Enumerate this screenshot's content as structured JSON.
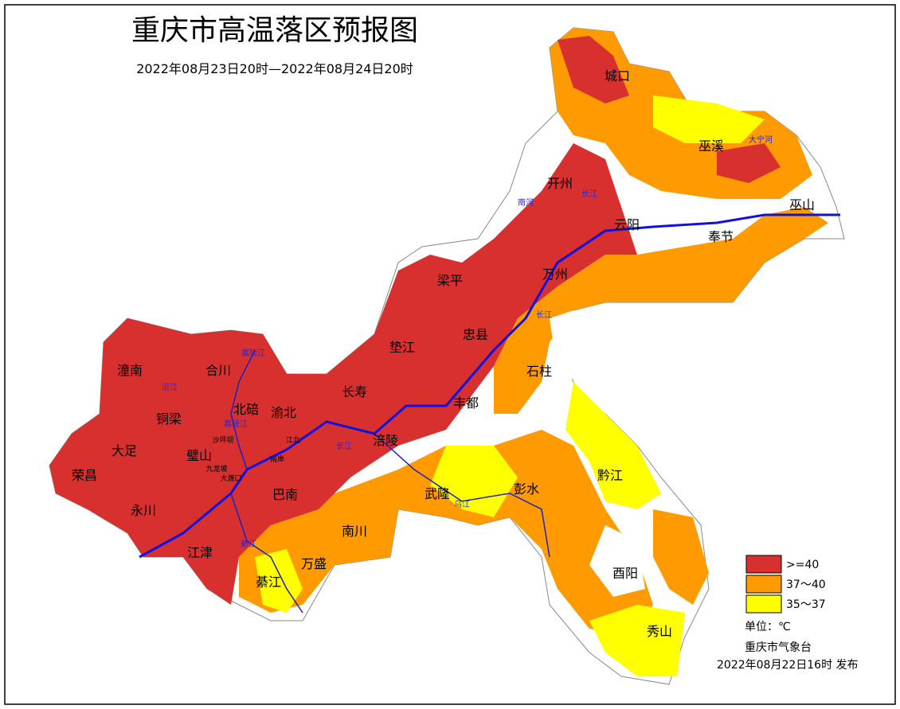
{
  "header": {
    "title": "重庆市高温落区预报图",
    "subtitle": "2022年08月23日20时—2022年08月24日20时"
  },
  "labels": {
    "districts": [
      "城口",
      "巫溪",
      "开州",
      "巫山",
      "云阳",
      "奉节",
      "梁平",
      "万州",
      "忠县",
      "垫江",
      "石柱",
      "潼南",
      "合川",
      "长寿",
      "北碚",
      "渝北",
      "丰都",
      "铜梁",
      "涪陵",
      "大足",
      "璧山",
      "荣昌",
      "武隆",
      "彭水",
      "黔江",
      "巴南",
      "永川",
      "南川",
      "江津",
      "万盛",
      "綦江",
      "酉阳",
      "秀山"
    ],
    "small": [
      "沙坪坝",
      "九龙坡",
      "大渡口",
      "江北",
      "南岸"
    ],
    "rivers": [
      "涪江",
      "嘉陵江",
      "嘉陵江",
      "长江",
      "长江",
      "长江",
      "乌江",
      "南河",
      "大宁河",
      "綦江"
    ]
  },
  "legend": [
    {
      "label": ">=40",
      "color": "#d8302e"
    },
    {
      "label": "37～40",
      "color": "#ff9a00"
    },
    {
      "label": "35～37",
      "color": "#ffff00"
    }
  ],
  "footer": {
    "unit": "单位：℃",
    "publisher": "重庆市气象台",
    "issued": "2022年08月22日16时  发布"
  }
}
